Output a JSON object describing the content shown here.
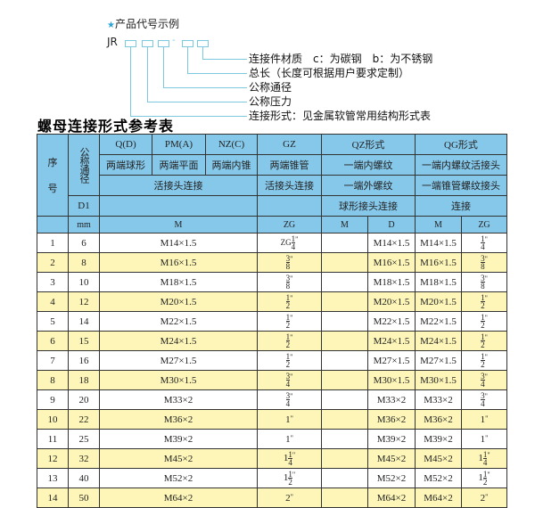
{
  "example": {
    "heading": "产品代号示例",
    "code": "JR",
    "dash": "-",
    "labels": [
      "连接件材质　c：为碳钢　b：为不锈钢",
      "总长（长度可根据用户要求定制）",
      "公称通径",
      "公称压力",
      "连接形式：见金属软管常用结构形式表"
    ]
  },
  "title": "螺母连接形式参考表",
  "header": {
    "seq": "序\n\n号",
    "nominal": "公称通径",
    "d1": "D1",
    "mm": "mm",
    "qd": "Q(D)",
    "pm": "PM(A)",
    "nz": "NZ(C)",
    "gz": "GZ",
    "qz": "QZ形式",
    "qg": "QG形式",
    "qd2": "两端球形",
    "pm2": "两端平面",
    "nz2": "两端内锥",
    "gz2": "两端锥管",
    "qz2": "一端内螺纹",
    "qg2": "一端内螺纹活接头",
    "union": "活接头连接",
    "gz3": "活接头连接",
    "qz3": "一端外螺纹",
    "qg3": "一端锥管螺纹接头",
    "qz4": "球形接头连接",
    "qg4": "连接",
    "m": "M",
    "zg": "ZG",
    "qzm": "M",
    "qzd": "D",
    "qgm": "M",
    "qgzg": "ZG"
  },
  "rows": [
    {
      "no": "1",
      "dn": "6",
      "m": "M14×1.5",
      "zg": {
        "prefix": "ZG",
        "whole": "",
        "num": "1",
        "den": "4"
      },
      "qzm": "",
      "qzd": "M14×1.5",
      "qgm": "M14×1.5",
      "qgzg": {
        "prefix": "",
        "whole": "",
        "num": "1",
        "den": "4"
      }
    },
    {
      "no": "2",
      "dn": "8",
      "m": "M16×1.5",
      "zg": {
        "prefix": "",
        "whole": "",
        "num": "3",
        "den": "8"
      },
      "qzm": "",
      "qzd": "M16×1.5",
      "qgm": "M16×1.5",
      "qgzg": {
        "prefix": "",
        "whole": "",
        "num": "3",
        "den": "8"
      }
    },
    {
      "no": "3",
      "dn": "10",
      "m": "M18×1.5",
      "zg": {
        "prefix": "",
        "whole": "",
        "num": "3",
        "den": "8"
      },
      "qzm": "",
      "qzd": "M18×1.5",
      "qgm": "M18×1.5",
      "qgzg": {
        "prefix": "",
        "whole": "",
        "num": "3",
        "den": "8"
      }
    },
    {
      "no": "4",
      "dn": "12",
      "m": "M20×1.5",
      "zg": {
        "prefix": "",
        "whole": "",
        "num": "1",
        "den": "2"
      },
      "qzm": "",
      "qzd": "M20×1.5",
      "qgm": "M20×1.5",
      "qgzg": {
        "prefix": "",
        "whole": "",
        "num": "1",
        "den": "2"
      }
    },
    {
      "no": "5",
      "dn": "14",
      "m": "M22×1.5",
      "zg": {
        "prefix": "",
        "whole": "",
        "num": "1",
        "den": "2"
      },
      "qzm": "",
      "qzd": "M22×1.5",
      "qgm": "M22×1.5",
      "qgzg": {
        "prefix": "",
        "whole": "",
        "num": "1",
        "den": "2"
      }
    },
    {
      "no": "6",
      "dn": "15",
      "m": "M24×1.5",
      "zg": {
        "prefix": "",
        "whole": "",
        "num": "1",
        "den": "2"
      },
      "qzm": "",
      "qzd": "M24×1.5",
      "qgm": "M24×1.5",
      "qgzg": {
        "prefix": "",
        "whole": "",
        "num": "1",
        "den": "2"
      }
    },
    {
      "no": "7",
      "dn": "16",
      "m": "M27×1.5",
      "zg": {
        "prefix": "",
        "whole": "",
        "num": "1",
        "den": "2"
      },
      "qzm": "",
      "qzd": "M27×1.5",
      "qgm": "M27×1.5",
      "qgzg": {
        "prefix": "",
        "whole": "",
        "num": "1",
        "den": "2"
      }
    },
    {
      "no": "8",
      "dn": "18",
      "m": "M30×1.5",
      "zg": {
        "prefix": "",
        "whole": "",
        "num": "3",
        "den": "4"
      },
      "qzm": "",
      "qzd": "M30×1.5",
      "qgm": "M30×1.5",
      "qgzg": {
        "prefix": "",
        "whole": "",
        "num": "3",
        "den": "4"
      }
    },
    {
      "no": "9",
      "dn": "20",
      "m": "M33×2",
      "zg": {
        "prefix": "",
        "whole": "",
        "num": "3",
        "den": "4"
      },
      "qzm": "",
      "qzd": "M33×2",
      "qgm": "M33×2",
      "qgzg": {
        "prefix": "",
        "whole": "",
        "num": "3",
        "den": "4"
      }
    },
    {
      "no": "10",
      "dn": "22",
      "m": "M36×2",
      "zg": {
        "prefix": "",
        "whole": "1",
        "num": "",
        "den": ""
      },
      "qzm": "",
      "qzd": "M36×2",
      "qgm": "M36×2",
      "qgzg": {
        "prefix": "",
        "whole": "1",
        "num": "",
        "den": ""
      }
    },
    {
      "no": "11",
      "dn": "25",
      "m": "M39×2",
      "zg": {
        "prefix": "",
        "whole": "1",
        "num": "",
        "den": ""
      },
      "qzm": "",
      "qzd": "M39×2",
      "qgm": "M39×2",
      "qgzg": {
        "prefix": "",
        "whole": "1",
        "num": "",
        "den": ""
      }
    },
    {
      "no": "12",
      "dn": "32",
      "m": "M45×2",
      "zg": {
        "prefix": "",
        "whole": "1",
        "num": "1",
        "den": "4"
      },
      "qzm": "",
      "qzd": "M45×2",
      "qgm": "M45×2",
      "qgzg": {
        "prefix": "",
        "whole": "1",
        "num": "1",
        "den": "4"
      }
    },
    {
      "no": "13",
      "dn": "40",
      "m": "M52×2",
      "zg": {
        "prefix": "",
        "whole": "1",
        "num": "1",
        "den": "2"
      },
      "qzm": "",
      "qzd": "M52×2",
      "qgm": "M52×2",
      "qgzg": {
        "prefix": "",
        "whole": "1",
        "num": "1",
        "den": "2"
      }
    },
    {
      "no": "14",
      "dn": "50",
      "m": "M64×2",
      "zg": {
        "prefix": "",
        "whole": "2",
        "num": "",
        "den": ""
      },
      "qzm": "",
      "qzd": "M64×2",
      "qgm": "M64×2",
      "qgzg": {
        "prefix": "",
        "whole": "2",
        "num": "",
        "den": ""
      }
    }
  ],
  "colors": {
    "header": "#86c8ea",
    "stripe": "#fdf6b8",
    "accent": "#2aa3d6"
  }
}
